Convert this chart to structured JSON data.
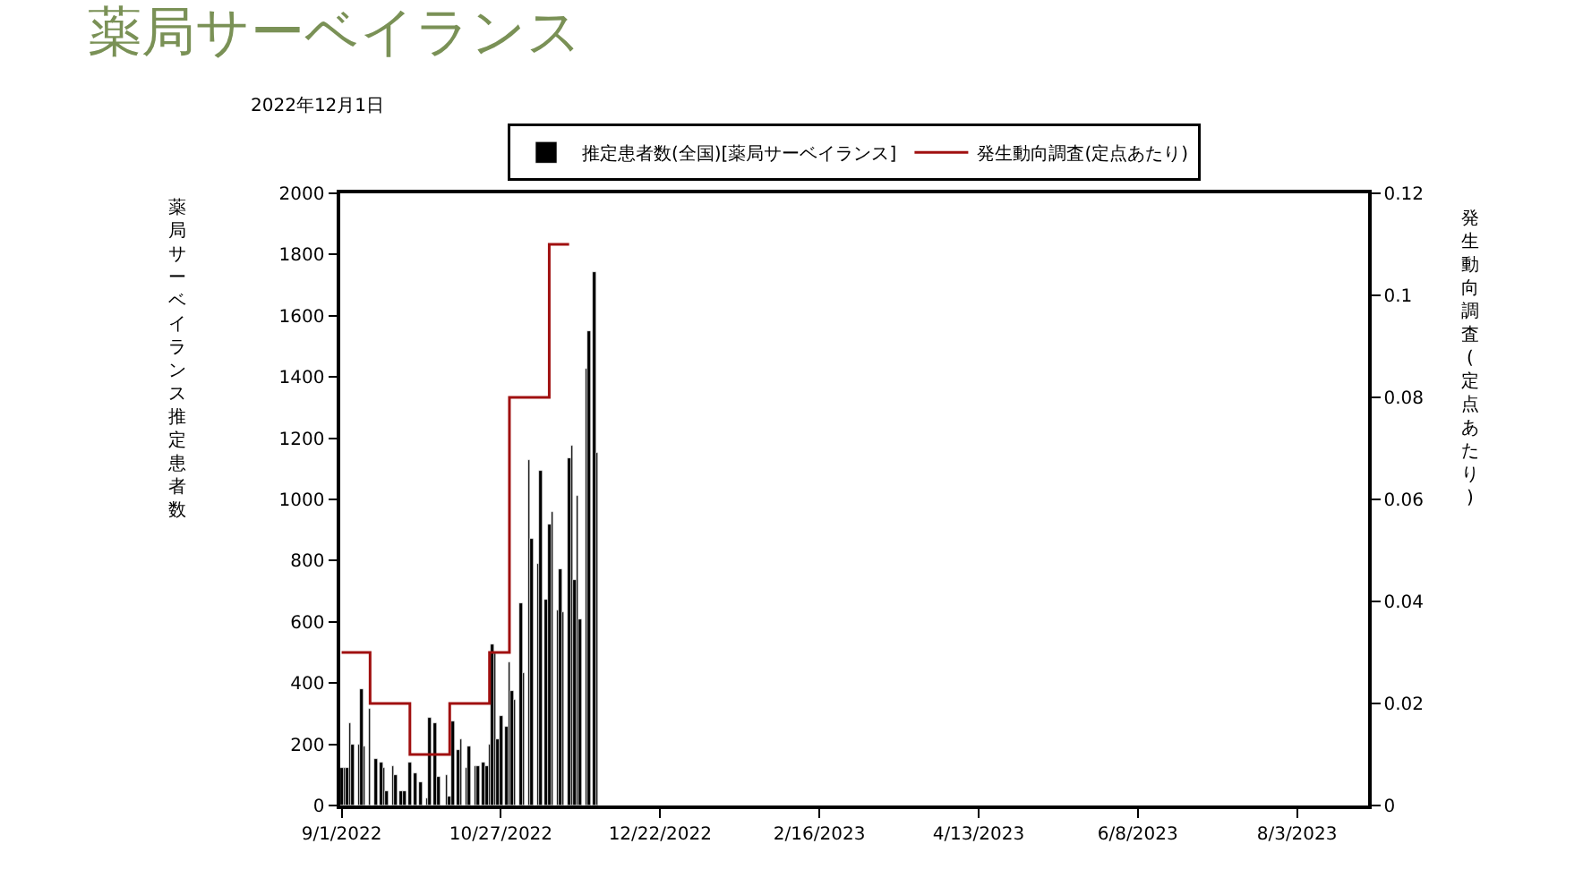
{
  "chart_data": {
    "type": "bar",
    "title": "薬局サーベイランス",
    "subtitle": "2022年12月1日",
    "ylabel": "薬局サーベイランス推定患者数",
    "y2label": "発生動向調査(定点あたり)",
    "xlim": [
      "2022-08-31T12:00",
      "2023-08-28"
    ],
    "xticks": [
      {
        "value": "2022-09-01",
        "label": "9/1/2022"
      },
      {
        "value": "2022-10-27",
        "label": "10/27/2022"
      },
      {
        "value": "2022-12-22",
        "label": "12/22/2022"
      },
      {
        "value": "2023-02-16",
        "label": "2/16/2023"
      },
      {
        "value": "2023-04-13",
        "label": "4/13/2023"
      },
      {
        "value": "2023-06-08",
        "label": "6/8/2023"
      },
      {
        "value": "2023-08-03",
        "label": "8/3/2023"
      }
    ],
    "ylim": [
      0,
      2000
    ],
    "yticks": [
      0,
      200,
      400,
      600,
      800,
      1000,
      1200,
      1400,
      1600,
      1800,
      2000
    ],
    "y2lim": [
      0,
      0.12
    ],
    "y2ticks": [
      0,
      0.02,
      0.04,
      0.06,
      0.08,
      0.1,
      0.12
    ],
    "grid": false,
    "legend": "top",
    "marker": "none",
    "series": [
      {
        "name": "推定患者数(全国)[薬局サーベイランス]",
        "color": "#000000",
        "x": [
          "2022-09-01",
          "2022-09-02",
          "2022-09-03",
          "2022-09-04",
          "2022-09-05",
          "2022-09-07",
          "2022-09-08",
          "2022-09-09",
          "2022-09-11",
          "2022-09-13",
          "2022-09-15",
          "2022-09-16",
          "2022-09-17",
          "2022-09-19",
          "2022-09-20",
          "2022-09-22",
          "2022-09-23",
          "2022-09-25",
          "2022-09-27",
          "2022-09-29",
          "2022-10-01",
          "2022-10-02",
          "2022-10-04",
          "2022-10-05",
          "2022-10-08",
          "2022-10-09",
          "2022-10-10",
          "2022-10-12",
          "2022-10-13",
          "2022-10-15",
          "2022-10-16",
          "2022-10-18",
          "2022-10-19",
          "2022-10-21",
          "2022-10-22",
          "2022-10-23",
          "2022-10-24",
          "2022-10-25",
          "2022-10-26",
          "2022-10-27",
          "2022-10-29",
          "2022-10-30",
          "2022-10-31",
          "2022-11-01",
          "2022-11-03",
          "2022-11-04",
          "2022-11-06",
          "2022-11-07",
          "2022-11-09",
          "2022-11-10",
          "2022-11-12",
          "2022-11-13",
          "2022-11-14",
          "2022-11-16",
          "2022-11-17",
          "2022-11-18",
          "2022-11-20",
          "2022-11-21",
          "2022-11-22",
          "2022-11-23",
          "2022-11-24",
          "2022-11-26",
          "2022-11-27",
          "2022-11-29",
          "2022-11-30"
        ],
        "values": [
          125,
          125,
          125,
          270,
          200,
          200,
          380,
          195,
          315,
          155,
          140,
          125,
          45,
          130,
          100,
          47,
          45,
          140,
          105,
          78,
          25,
          285,
          270,
          95,
          100,
          27,
          275,
          180,
          218,
          120,
          195,
          130,
          130,
          140,
          130,
          200,
          525,
          500,
          218,
          295,
          257,
          467,
          375,
          345,
          660,
          435,
          1127,
          870,
          790,
          1094,
          675,
          919,
          958,
          637,
          773,
          630,
          1133,
          1176,
          734,
          1012,
          611,
          1425,
          1552,
          1740,
          1150
        ]
      },
      {
        "name": "発生動向調査(定点あたり)",
        "type": "step",
        "axis": "y2",
        "color": "#a01010",
        "line_style": "solid",
        "x": [
          "2022-09-01",
          "2022-09-11",
          "2022-09-25",
          "2022-10-09",
          "2022-10-23",
          "2022-10-30",
          "2022-11-13",
          "2022-11-20"
        ],
        "values": [
          0.03,
          0.02,
          0.01,
          0.02,
          0.03,
          0.08,
          0.11,
          0.11
        ]
      }
    ]
  }
}
